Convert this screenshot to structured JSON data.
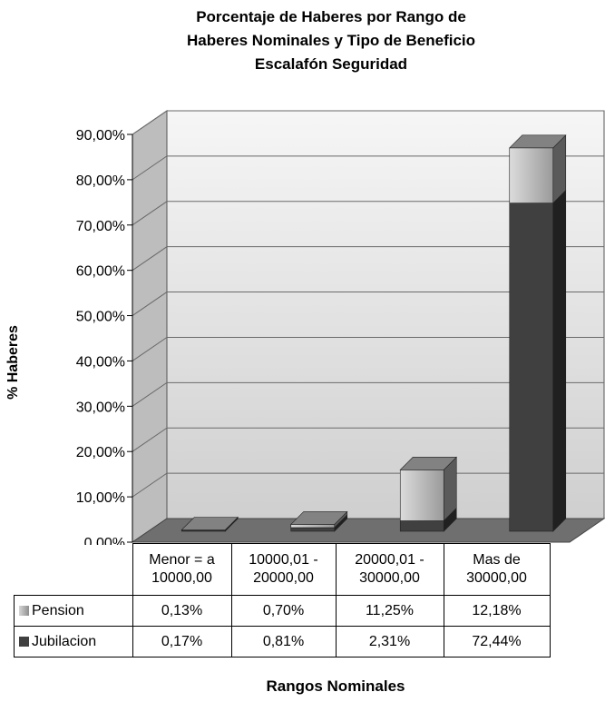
{
  "chart_data": {
    "type": "bar",
    "stacked": true,
    "three_d": true,
    "title_lines": [
      "Porcentaje de Haberes por Rango de",
      "Haberes Nominales y Tipo de Beneficio",
      "Escalafón Seguridad"
    ],
    "xlabel": "Rangos Nominales",
    "ylabel": "% Haberes",
    "ylim": [
      0,
      90
    ],
    "y_ticks": [
      "0,00%",
      "10,00%",
      "20,00%",
      "30,00%",
      "40,00%",
      "50,00%",
      "60,00%",
      "70,00%",
      "80,00%",
      "90,00%"
    ],
    "categories": [
      "Menor = a 10000,00",
      "10000,01 - 20000,00",
      "20000,01 - 30000,00",
      "Mas de 30000,00"
    ],
    "category_lines": [
      [
        "Menor = a",
        "10000,00"
      ],
      [
        "10000,01 -",
        "20000,00"
      ],
      [
        "20000,01 -",
        "30000,00"
      ],
      [
        "Mas de",
        "30000,00"
      ]
    ],
    "series": [
      {
        "name": "Pension",
        "values": [
          0.13,
          0.7,
          11.25,
          12.18
        ],
        "labels": [
          "0,13%",
          "0,70%",
          "11,25%",
          "12,18%"
        ],
        "color": "#b4b4b4"
      },
      {
        "name": "Jubilacion",
        "values": [
          0.17,
          0.81,
          2.31,
          72.44
        ],
        "labels": [
          "0,17%",
          "0,81%",
          "2,31%",
          "72,44%"
        ],
        "color": "#404040"
      }
    ],
    "grid": true,
    "legend": "data table"
  }
}
